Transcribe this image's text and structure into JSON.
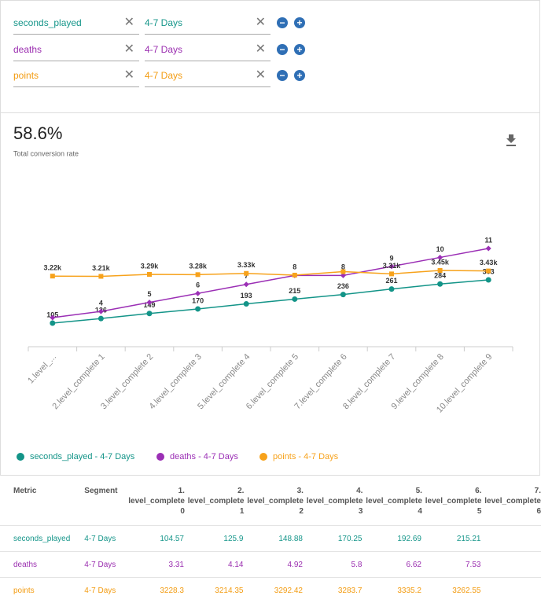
{
  "filters": [
    {
      "metric": "seconds_played",
      "segment": "4-7 Days",
      "color": "#16968a"
    },
    {
      "metric": "deaths",
      "segment": "4-7 Days",
      "color": "#9b2fb0"
    },
    {
      "metric": "points",
      "segment": "4-7 Days",
      "color": "#f39c12"
    }
  ],
  "summary": {
    "value": "58.6%",
    "label": "Total conversion rate"
  },
  "chart_data": {
    "type": "line",
    "categories": [
      "1.level_...",
      "2.level_complete 1",
      "3.level_complete 2",
      "4.level_complete 3",
      "5.level_complete 4",
      "6.level_complete 5",
      "7.level_complete 6",
      "8.level_complete 7",
      "9.level_complete 8",
      "10.level_complete 9"
    ],
    "series": [
      {
        "name": "seconds_played - 4-7 Days",
        "color": "#139488",
        "values": [
          105,
          126,
          149,
          170,
          193,
          215,
          236,
          261,
          284,
          303
        ]
      },
      {
        "name": "deaths - 4-7 Days",
        "color": "#9b2fb5",
        "values": [
          3.31,
          4,
          5,
          6,
          7,
          8,
          8,
          9,
          10,
          11
        ],
        "value_labels": [
          null,
          "4",
          "5",
          "6",
          "7",
          "8",
          "8",
          "9",
          "10",
          "11"
        ]
      },
      {
        "name": "points - 4-7 Days",
        "color": "#f7a21b",
        "values": [
          3220,
          3210,
          3290,
          3280,
          3330,
          3260,
          3400,
          3310,
          3450,
          3430
        ],
        "value_labels": [
          "3.22k",
          "3.21k",
          "3.29k",
          "3.28k",
          "3.33k",
          null,
          null,
          "3.31k",
          "3.45k",
          "3.43k"
        ]
      }
    ]
  },
  "table": {
    "header": [
      "Metric",
      "Segment"
    ],
    "columns": [
      {
        "num": "1.",
        "name": "level_complete",
        "idx": "0"
      },
      {
        "num": "2.",
        "name": "level_complete",
        "idx": "1"
      },
      {
        "num": "3.",
        "name": "level_complete",
        "idx": "2"
      },
      {
        "num": "4.",
        "name": "level_complete",
        "idx": "3"
      },
      {
        "num": "5.",
        "name": "level_complete",
        "idx": "4"
      },
      {
        "num": "6.",
        "name": "level_complete",
        "idx": "5"
      },
      {
        "num": "7.",
        "name": "level_complete",
        "idx": "6"
      }
    ],
    "rows": [
      {
        "metric": "seconds_played",
        "segment": "4-7 Days",
        "values": [
          104.57,
          125.9,
          148.88,
          170.25,
          192.69,
          215.21
        ]
      },
      {
        "metric": "deaths",
        "segment": "4-7 Days",
        "values": [
          3.31,
          4.14,
          4.92,
          5.8,
          6.62,
          7.53
        ]
      },
      {
        "metric": "points",
        "segment": "4-7 Days",
        "values": [
          3228.3,
          3214.35,
          3292.42,
          3283.7,
          3335.2,
          3262.55
        ]
      }
    ]
  }
}
